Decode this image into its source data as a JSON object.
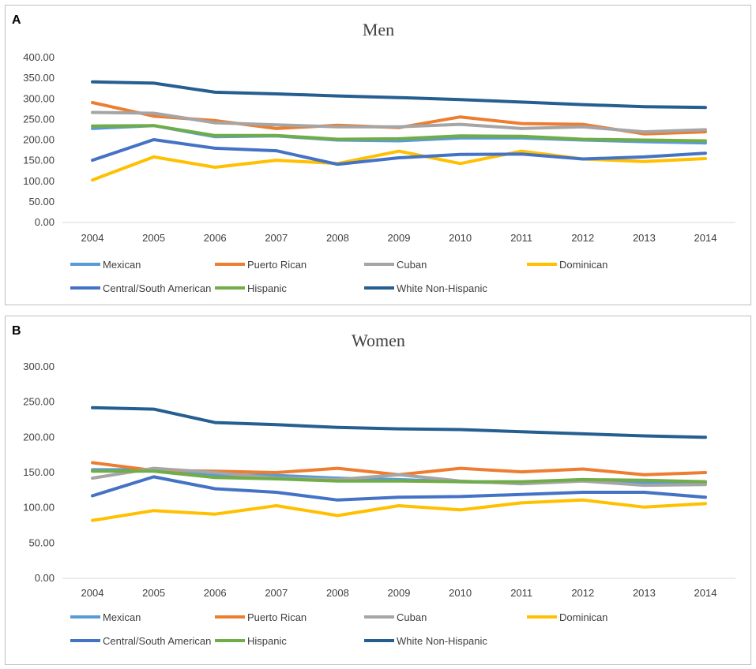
{
  "chart_data": [
    {
      "type": "line",
      "panel_label": "A",
      "title": "Men",
      "categories": [
        "2004",
        "2005",
        "2006",
        "2007",
        "2008",
        "2009",
        "2010",
        "2011",
        "2012",
        "2013",
        "2014"
      ],
      "ylim": [
        0,
        400
      ],
      "yticks": [
        "0.00",
        "50.00",
        "100.00",
        "150.00",
        "200.00",
        "250.00",
        "300.00",
        "350.00",
        "400.00"
      ],
      "series": [
        {
          "name": "Mexican",
          "color": "#5b9bd5",
          "values": [
            228,
            235,
            208,
            210,
            200,
            198,
            205,
            205,
            200,
            196,
            193
          ]
        },
        {
          "name": "Puerto Rican",
          "color": "#ed7d31",
          "values": [
            291,
            258,
            247,
            228,
            236,
            230,
            256,
            240,
            238,
            215,
            220
          ]
        },
        {
          "name": "Cuban",
          "color": "#a5a5a5",
          "values": [
            267,
            265,
            242,
            237,
            232,
            232,
            238,
            228,
            232,
            220,
            225
          ]
        },
        {
          "name": "Dominican",
          "color": "#ffc000",
          "values": [
            103,
            159,
            134,
            151,
            143,
            173,
            143,
            173,
            154,
            148,
            155
          ]
        },
        {
          "name": "Central/South American",
          "color": "#4472c4",
          "values": [
            151,
            201,
            180,
            174,
            141,
            157,
            165,
            166,
            154,
            159,
            168
          ]
        },
        {
          "name": "Hispanic",
          "color": "#70ad47",
          "values": [
            234,
            235,
            211,
            211,
            202,
            203,
            210,
            209,
            202,
            200,
            198
          ]
        },
        {
          "name": "White Non-Hispanic",
          "color": "#255e91",
          "values": [
            341,
            338,
            316,
            312,
            307,
            303,
            298,
            292,
            286,
            281,
            279
          ]
        }
      ]
    },
    {
      "type": "line",
      "panel_label": "B",
      "title": "Women",
      "categories": [
        "2004",
        "2005",
        "2006",
        "2007",
        "2008",
        "2009",
        "2010",
        "2011",
        "2012",
        "2013",
        "2014"
      ],
      "ylim": [
        0,
        300
      ],
      "yticks": [
        "0.00",
        "50.00",
        "100.00",
        "150.00",
        "200.00",
        "250.00",
        "300.00"
      ],
      "series": [
        {
          "name": "Mexican",
          "color": "#5b9bd5",
          "values": [
            154,
            154,
            147,
            146,
            142,
            140,
            137,
            135,
            140,
            136,
            136
          ]
        },
        {
          "name": "Puerto Rican",
          "color": "#ed7d31",
          "values": [
            164,
            153,
            152,
            150,
            156,
            147,
            156,
            151,
            155,
            147,
            150
          ]
        },
        {
          "name": "Cuban",
          "color": "#a5a5a5",
          "values": [
            142,
            156,
            150,
            142,
            140,
            147,
            138,
            134,
            138,
            132,
            133
          ]
        },
        {
          "name": "Dominican",
          "color": "#ffc000",
          "values": [
            82,
            96,
            91,
            103,
            89,
            103,
            97,
            107,
            111,
            101,
            106
          ]
        },
        {
          "name": "Central/South American",
          "color": "#4472c4",
          "values": [
            117,
            144,
            127,
            122,
            111,
            115,
            116,
            119,
            122,
            122,
            115
          ]
        },
        {
          "name": "Hispanic",
          "color": "#70ad47",
          "values": [
            152,
            152,
            143,
            141,
            138,
            138,
            137,
            137,
            140,
            139,
            137
          ]
        },
        {
          "name": "White Non-Hispanic",
          "color": "#255e91",
          "values": [
            242,
            240,
            221,
            218,
            214,
            212,
            211,
            208,
            205,
            202,
            200
          ]
        }
      ]
    }
  ]
}
